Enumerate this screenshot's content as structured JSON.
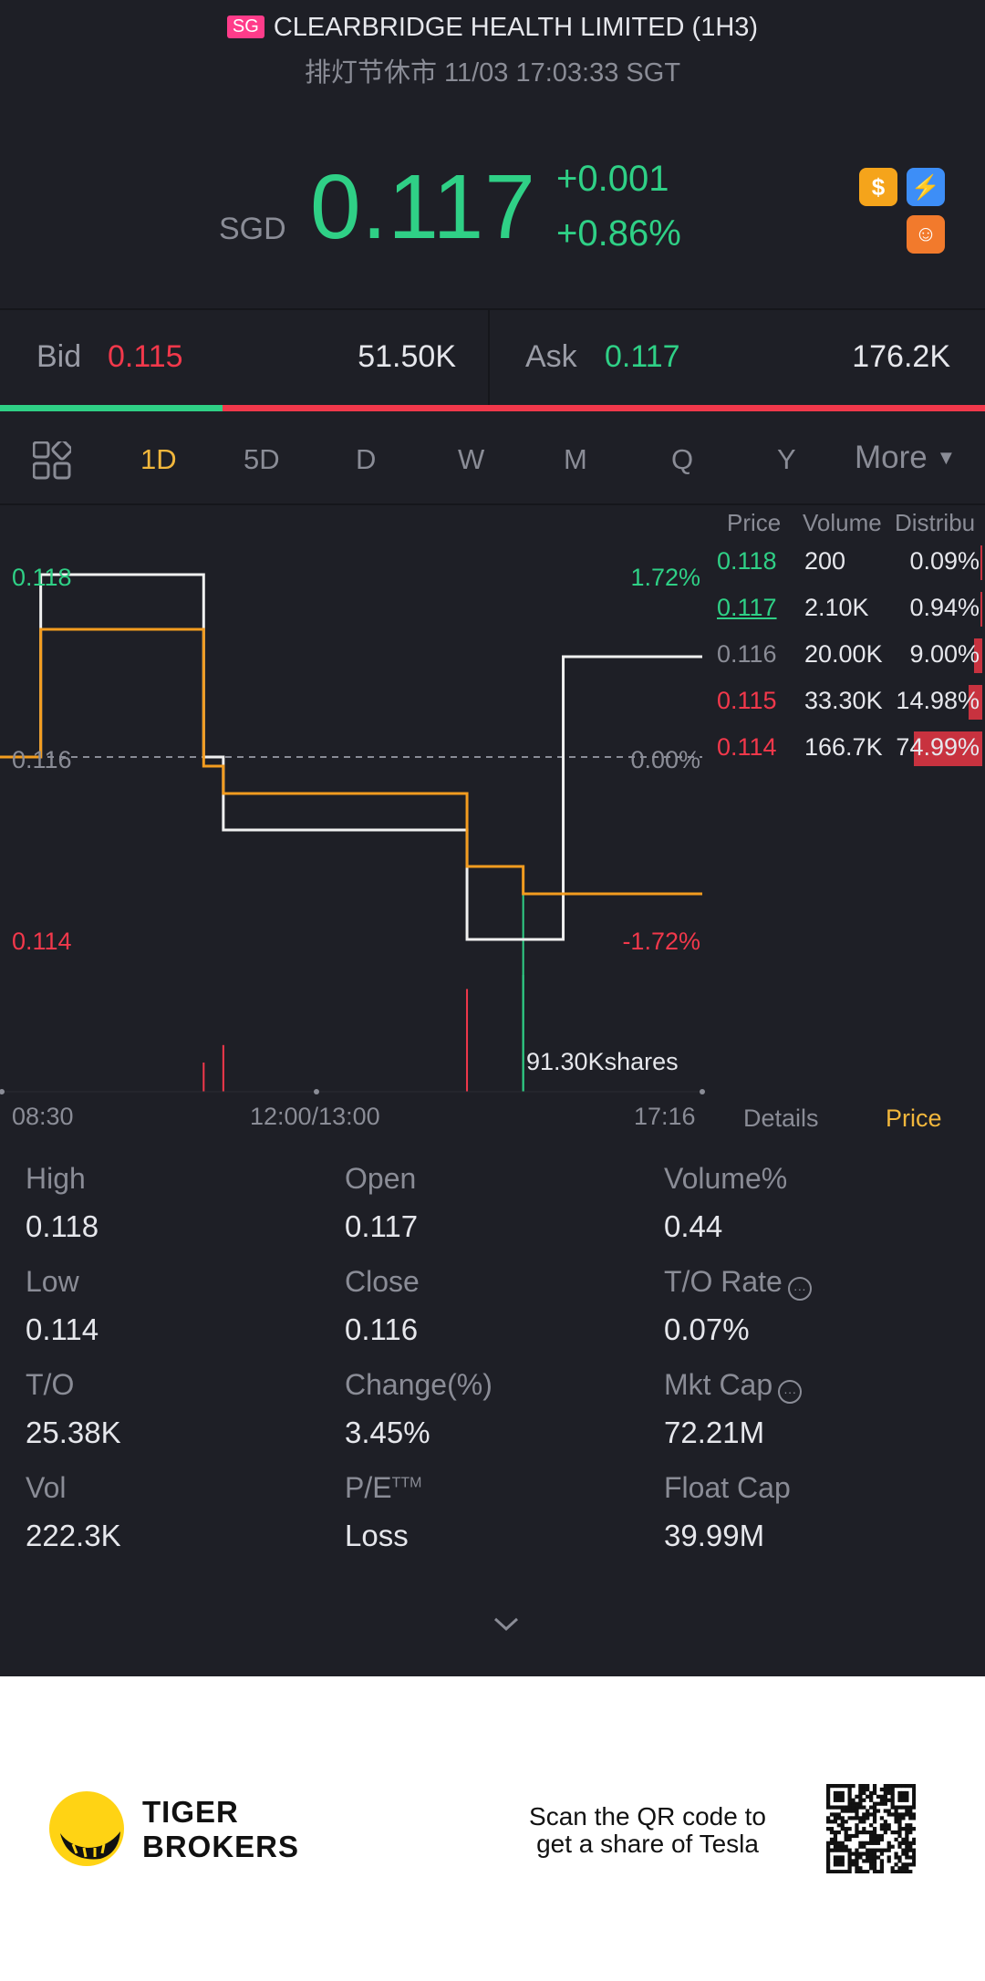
{
  "header": {
    "market_badge": "SG",
    "title": "CLEARBRIDGE HEALTH LIMITED (1H3)",
    "subtitle": "排灯节休市 11/03 17:03:33 SGT"
  },
  "quote": {
    "currency": "SGD",
    "price": "0.117",
    "change": "+0.001",
    "change_pct": "+0.86%",
    "icons": [
      "dollar-icon",
      "lightning-icon",
      "margin-icon"
    ]
  },
  "bidask": {
    "bid_label": "Bid",
    "bid_price": "0.115",
    "bid_size": "51.50K",
    "ask_label": "Ask",
    "ask_price": "0.117",
    "ask_size": "176.2K",
    "bid_ratio": 0.226
  },
  "tabs": [
    "1D",
    "5D",
    "D",
    "W",
    "M",
    "Q",
    "Y",
    "More"
  ],
  "active_tab": "1D",
  "chart_labels": {
    "y_high": "0.118",
    "y_mid": "0.116",
    "y_low": "0.114",
    "pct_high": "1.72%",
    "pct_mid": "0.00%",
    "pct_low": "-1.72%",
    "x_start": "08:30",
    "x_mid": "12:00/13:00",
    "x_end": "17:16",
    "volume_tooltip": "91.30Kshares"
  },
  "chart_data": {
    "type": "line",
    "ylim": [
      0.114,
      0.118
    ],
    "series": [
      {
        "x": [
          0,
          0.058,
          0.058,
          0.29,
          0.29,
          0.318,
          0.318,
          0.665,
          0.665,
          0.802,
          0.802,
          1.0
        ],
        "values": [
          0.116,
          0.116,
          0.118,
          0.118,
          0.116,
          0.116,
          0.1152,
          0.1152,
          0.114,
          0.114,
          0.1171,
          0.1171
        ]
      },
      {
        "x": [
          0,
          0.058,
          0.058,
          0.29,
          0.29,
          0.318,
          0.318,
          0.45,
          0.665,
          0.665,
          0.745,
          0.745,
          1.0
        ],
        "values": [
          0.116,
          0.116,
          0.1174,
          0.1174,
          0.1159,
          0.1159,
          0.1156,
          0.1156,
          0.1156,
          0.1148,
          0.1148,
          0.1145,
          0.1145
        ]
      }
    ],
    "volume": {
      "x": [
        0.29,
        0.318,
        0.665,
        0.745
      ],
      "values": [
        25,
        40,
        88,
        100
      ]
    }
  },
  "orderbook": {
    "headers": [
      "Price",
      "Volume",
      "Distribu"
    ],
    "rows": [
      {
        "price": "0.118",
        "volume": "200",
        "dist": "0.09%",
        "pct": 0.09
      },
      {
        "price": "0.117",
        "volume": "2.10K",
        "dist": "0.94%",
        "pct": 0.94
      },
      {
        "price": "0.116",
        "volume": "20.00K",
        "dist": "9.00%",
        "pct": 9.0
      },
      {
        "price": "0.115",
        "volume": "33.30K",
        "dist": "14.98%",
        "pct": 14.98
      },
      {
        "price": "0.114",
        "volume": "166.7K",
        "dist": "74.99%",
        "pct": 74.99
      }
    ],
    "details_label": "Details",
    "price_label": "Price"
  },
  "stats": [
    {
      "label": "High",
      "value": "0.118"
    },
    {
      "label": "Open",
      "value": "0.117"
    },
    {
      "label": "Volume%",
      "value": "0.44"
    },
    {
      "label": "Low",
      "value": "0.114"
    },
    {
      "label": "Close",
      "value": "0.116"
    },
    {
      "label": "T/O Rate",
      "value": "0.07%"
    },
    {
      "label": "T/O",
      "value": "25.38K"
    },
    {
      "label": "Change(%)",
      "value": "3.45%"
    },
    {
      "label": "Mkt Cap",
      "value": "72.21M"
    },
    {
      "label": "Vol",
      "value": "222.3K"
    },
    {
      "label": "P/E",
      "value": "Loss"
    },
    {
      "label": "Float Cap",
      "value": "39.99M"
    }
  ],
  "pe_sup": "TTM",
  "footer": {
    "brand_line1": "TIGER",
    "brand_line2": "BROKERS",
    "promo_line1": "Scan the QR code to",
    "promo_line2": "get a share of Tesla"
  },
  "colors": {
    "up": "#2fd086",
    "down": "#f2384b",
    "accent": "#f2b73c",
    "bg": "#1e1f26"
  }
}
